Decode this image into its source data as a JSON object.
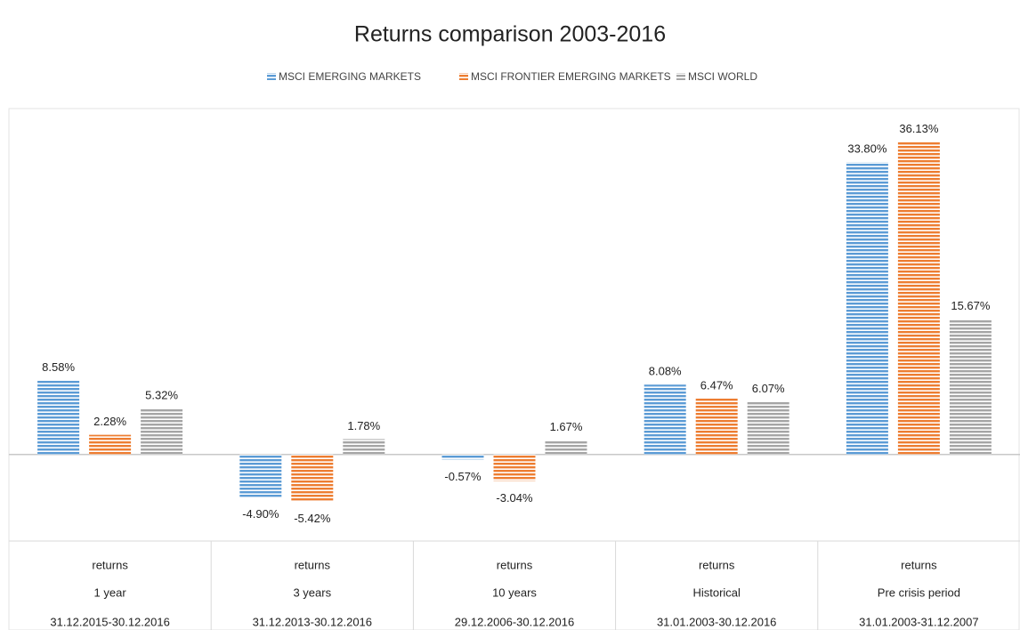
{
  "chart_data": {
    "type": "bar",
    "title": "Returns comparison 2003-2016",
    "categories": [
      [
        "returns",
        "1 year",
        "31.12.2015-30.12.2016"
      ],
      [
        "returns",
        "3 years",
        "31.12.2013-30.12.2016"
      ],
      [
        "returns",
        "10 years",
        "29.12.2006-30.12.2016"
      ],
      [
        "returns",
        "Historical",
        "31.01.2003-30.12.2016"
      ],
      [
        "returns",
        "Pre crisis period",
        "31.01.2003-31.12.2007"
      ]
    ],
    "series": [
      {
        "name": "MSCI EMERGING MARKETS",
        "color": "#5b9bd5",
        "values": [
          8.58,
          -4.9,
          -0.57,
          8.08,
          33.8
        ],
        "value_labels": [
          "8.58%",
          "-4.90%",
          "-0.57%",
          "8.08%",
          "33.80%"
        ]
      },
      {
        "name": "MSCI FRONTIER EMERGING MARKETS",
        "color": "#ed7d31",
        "values": [
          2.28,
          -5.42,
          -3.04,
          6.47,
          36.13
        ],
        "value_labels": [
          "2.28%",
          "-5.42%",
          "-3.04%",
          "6.47%",
          "36.13%"
        ]
      },
      {
        "name": "MSCI WORLD",
        "color": "#a5a5a5",
        "values": [
          5.32,
          1.78,
          1.67,
          6.07,
          15.67
        ],
        "value_labels": [
          "5.32%",
          "1.78%",
          "1.67%",
          "6.07%",
          "15.67%"
        ]
      }
    ],
    "ylim": [
      -10,
      40
    ],
    "legend": "top"
  }
}
